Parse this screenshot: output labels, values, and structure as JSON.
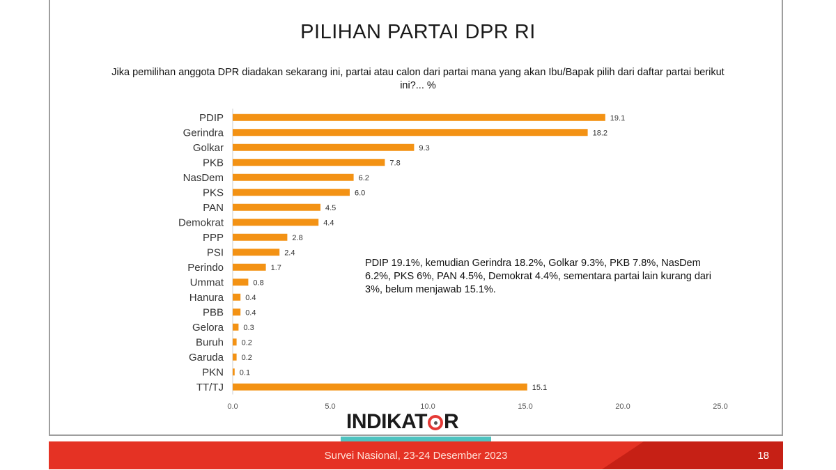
{
  "slide": {
    "title": "PILIHAN PARTAI DPR RI",
    "subtitle": "Jika pemilihan anggota DPR diadakan sekarang ini, partai atau calon dari partai mana yang akan Ibu/Bapak pilih dari daftar partai berikut ini?... %",
    "annotation": "PDIP 19.1%, kemudian Gerindra 18.2%, Golkar 9.3%, PKB 7.8%, NasDem 6.2%, PKS 6%, PAN 4.5%, Demokrat 4.4%, sementara partai lain kurang dari 3%, belum menjawab 15.1%.",
    "logo_text_left": "INDIKAT",
    "logo_text_right": "R",
    "footer_text": "Survei Nasional, 23-24 Desember 2023",
    "page_number": "18"
  },
  "colors": {
    "bar": "#f39214",
    "footer": "#e53224",
    "accent_teal": "#4fc3c0"
  },
  "chart_data": {
    "type": "bar",
    "orientation": "horizontal",
    "categories": [
      "PDIP",
      "Gerindra",
      "Golkar",
      "PKB",
      "NasDem",
      "PKS",
      "PAN",
      "Demokrat",
      "PPP",
      "PSI",
      "Perindo",
      "Ummat",
      "Hanura",
      "PBB",
      "Gelora",
      "Buruh",
      "Garuda",
      "PKN",
      "TT/TJ"
    ],
    "values": [
      19.1,
      18.2,
      9.3,
      7.8,
      6.2,
      6.0,
      4.5,
      4.4,
      2.8,
      2.4,
      1.7,
      0.8,
      0.4,
      0.4,
      0.3,
      0.2,
      0.2,
      0.1,
      15.1
    ],
    "value_labels": [
      "19.1",
      "18.2",
      "9.3",
      "7.8",
      "6.2",
      "6.0",
      "4.5",
      "4.4",
      "2.8",
      "2.4",
      "1.7",
      "0.8",
      "0.4",
      "0.4",
      "0.3",
      "0.2",
      "0.2",
      "0.1",
      "15.1"
    ],
    "xticks": [
      "0.0",
      "5.0",
      "10.0",
      "15.0",
      "20.0",
      "25.0"
    ],
    "xlim": [
      0,
      25
    ],
    "grid": false,
    "title": "PILIHAN PARTAI DPR RI"
  }
}
